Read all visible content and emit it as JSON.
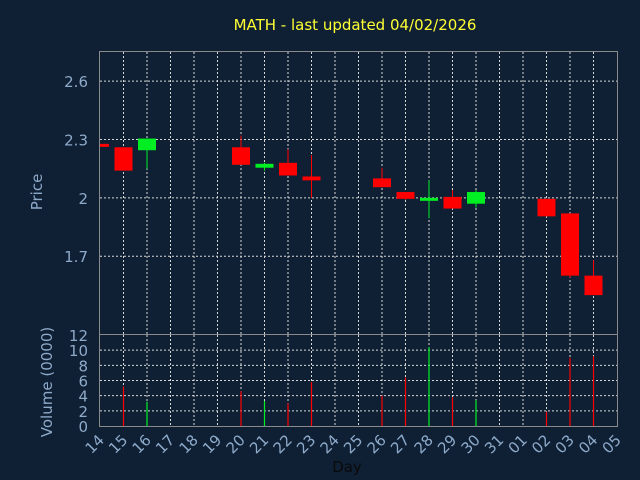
{
  "chart_data": {
    "type": "candlestick",
    "title": "MATH - last updated 04/02/2026",
    "xlabel": "Day",
    "x_ticks": [
      "14",
      "15",
      "16",
      "17",
      "18",
      "19",
      "20",
      "21",
      "22",
      "23",
      "24",
      "25",
      "26",
      "27",
      "28",
      "29",
      "30",
      "31",
      "01",
      "02",
      "03",
      "04",
      "05"
    ],
    "price_panel": {
      "ylabel": "Price",
      "ylim": [
        1.3,
        2.75
      ],
      "y_ticks": [
        "2.6",
        "2.3",
        "2",
        "1.7"
      ],
      "y_tick_values": [
        2.6,
        2.3,
        2.0,
        1.7
      ],
      "candles": [
        {
          "day": "14",
          "open": 2.275,
          "high": 2.275,
          "low": 2.265,
          "close": 2.265
        },
        {
          "day": "15",
          "open": 2.26,
          "high": 2.26,
          "low": 2.14,
          "close": 2.14
        },
        {
          "day": "16",
          "open": 2.245,
          "high": 2.305,
          "low": 2.15,
          "close": 2.305
        },
        {
          "day": "20",
          "open": 2.26,
          "high": 2.32,
          "low": 2.17,
          "close": 2.17
        },
        {
          "day": "21",
          "open": 2.155,
          "high": 2.18,
          "low": 2.14,
          "close": 2.175
        },
        {
          "day": "22",
          "open": 2.18,
          "high": 2.25,
          "low": 2.115,
          "close": 2.115
        },
        {
          "day": "23",
          "open": 2.11,
          "high": 2.22,
          "low": 2.0,
          "close": 2.09
        },
        {
          "day": "26",
          "open": 2.1,
          "high": 2.155,
          "low": 2.055,
          "close": 2.055
        },
        {
          "day": "27",
          "open": 2.03,
          "high": 2.03,
          "low": 1.99,
          "close": 1.995
        },
        {
          "day": "28",
          "open": 1.985,
          "high": 2.09,
          "low": 1.895,
          "close": 2.0
        },
        {
          "day": "29",
          "open": 2.005,
          "high": 2.04,
          "low": 1.945,
          "close": 1.945
        },
        {
          "day": "30",
          "open": 1.97,
          "high": 2.04,
          "low": 1.95,
          "close": 2.03
        },
        {
          "day": "02",
          "open": 1.995,
          "high": 1.995,
          "low": 1.905,
          "close": 1.905
        },
        {
          "day": "03",
          "open": 1.92,
          "high": 1.92,
          "low": 1.59,
          "close": 1.6
        },
        {
          "day": "04",
          "open": 1.6,
          "high": 1.68,
          "low": 1.5,
          "close": 1.5
        }
      ]
    },
    "volume_panel": {
      "ylabel": "Volume (0000)",
      "ylim": [
        0,
        12
      ],
      "y_ticks": [
        "0",
        "2",
        "4",
        "6",
        "8",
        "10",
        "12"
      ],
      "y_tick_values": [
        0,
        2,
        4,
        6,
        8,
        10,
        12
      ],
      "bars": [
        {
          "day": "15",
          "value": 5.2,
          "direction": "down"
        },
        {
          "day": "16",
          "value": 3.2,
          "direction": "up"
        },
        {
          "day": "20",
          "value": 4.6,
          "direction": "down"
        },
        {
          "day": "21",
          "value": 3.3,
          "direction": "up"
        },
        {
          "day": "22",
          "value": 3.0,
          "direction": "down"
        },
        {
          "day": "23",
          "value": 5.8,
          "direction": "down"
        },
        {
          "day": "26",
          "value": 4.0,
          "direction": "down"
        },
        {
          "day": "27",
          "value": 6.4,
          "direction": "down"
        },
        {
          "day": "28",
          "value": 10.4,
          "direction": "up"
        },
        {
          "day": "29",
          "value": 3.8,
          "direction": "down"
        },
        {
          "day": "30",
          "value": 3.4,
          "direction": "up"
        },
        {
          "day": "02",
          "value": 1.9,
          "direction": "down"
        },
        {
          "day": "03",
          "value": 9.0,
          "direction": "down"
        },
        {
          "day": "04",
          "value": 9.2,
          "direction": "down"
        }
      ]
    },
    "grid": true,
    "colors": {
      "background": "#0f2035",
      "up": "#00ee22",
      "down": "#ff0000",
      "title": "#ffff33",
      "tick_text": "#8eaac9",
      "grid": "#d8d8d8",
      "frame": "#8a8a8a"
    }
  }
}
